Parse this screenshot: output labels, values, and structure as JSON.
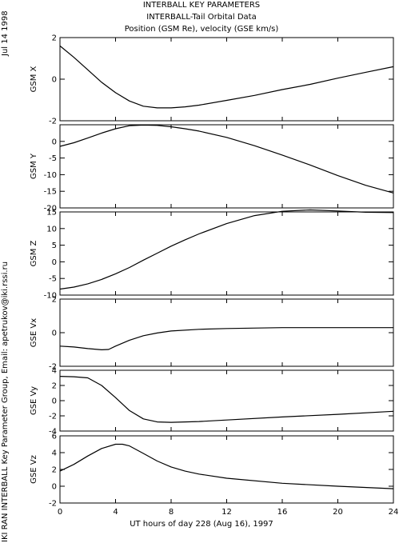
{
  "side_date": "Jul 14 1998",
  "credit": "IKI RAN INTERBALL Key Parameter Group, Email: apetrukov@iki.rssi.ru",
  "chart_data": {
    "type": "line",
    "title": "INTERBALL KEY PARAMETERS",
    "subtitle_1": "INTERBALL-Tail Orbital Data",
    "subtitle_2": "Position (GSM Re), velocity (GSE km/s)",
    "xlabel": "UT hours of day 228 (Aug 16), 1997",
    "x_ticks": [
      0,
      4,
      8,
      12,
      16,
      20,
      24
    ],
    "xlim": [
      0,
      24
    ],
    "grid": false,
    "panels": [
      {
        "ylabel": "GSM X",
        "ylim": [
          -2,
          2
        ],
        "y_ticks": [
          2,
          0,
          -2
        ],
        "x": [
          0,
          1,
          2,
          3,
          4,
          5,
          6,
          7,
          8,
          9,
          10,
          12,
          14,
          16,
          18,
          20,
          22,
          24
        ],
        "values": [
          1.6,
          1.05,
          0.45,
          -0.15,
          -0.65,
          -1.05,
          -1.3,
          -1.38,
          -1.38,
          -1.33,
          -1.25,
          -1.02,
          -0.78,
          -0.5,
          -0.25,
          0.05,
          0.33,
          0.6
        ]
      },
      {
        "ylabel": "GSM Y",
        "ylim": [
          -20,
          5
        ],
        "y_ticks": [
          0,
          -5,
          -10,
          -15,
          -20
        ],
        "x": [
          0,
          1,
          2,
          3,
          4,
          5,
          6,
          7,
          8,
          9,
          10,
          12,
          14,
          16,
          18,
          20,
          22,
          24
        ],
        "values": [
          -1.5,
          -0.4,
          1.0,
          2.5,
          3.8,
          4.7,
          4.9,
          4.8,
          4.4,
          3.8,
          3.1,
          1.2,
          -1.3,
          -4.1,
          -7.1,
          -10.3,
          -13.2,
          -15.5
        ]
      },
      {
        "ylabel": "GSM Z",
        "ylim": [
          -10,
          15
        ],
        "y_ticks": [
          15,
          10,
          5,
          0,
          -5,
          -10
        ],
        "x": [
          0,
          1,
          2,
          3,
          4,
          5,
          6,
          7,
          8,
          9,
          10,
          12,
          14,
          16,
          18,
          20,
          22,
          24
        ],
        "values": [
          -8.2,
          -7.6,
          -6.6,
          -5.3,
          -3.6,
          -1.7,
          0.5,
          2.6,
          4.7,
          6.6,
          8.4,
          11.5,
          13.9,
          15.2,
          15.6,
          15.3,
          14.9,
          14.8
        ]
      },
      {
        "ylabel": "GSE Vx",
        "ylim": [
          -2,
          2
        ],
        "y_ticks": [
          2,
          0,
          -2
        ],
        "x": [
          0,
          1,
          2,
          3,
          3.5,
          4,
          5,
          6,
          7,
          8,
          10,
          12,
          16,
          20,
          24
        ],
        "values": [
          -0.8,
          -0.85,
          -0.95,
          -1.02,
          -1.0,
          -0.8,
          -0.45,
          -0.18,
          -0.02,
          0.1,
          0.2,
          0.25,
          0.3,
          0.3,
          0.3
        ]
      },
      {
        "ylabel": "GSE Vy",
        "ylim": [
          -4,
          4
        ],
        "y_ticks": [
          4,
          2,
          0,
          -2,
          -4
        ],
        "x": [
          0,
          1,
          2,
          3,
          4,
          5,
          6,
          7,
          8,
          9,
          10,
          12,
          16,
          20,
          24
        ],
        "values": [
          3.2,
          3.15,
          3.0,
          2.0,
          0.4,
          -1.3,
          -2.4,
          -2.8,
          -2.85,
          -2.8,
          -2.75,
          -2.55,
          -2.15,
          -1.8,
          -1.4
        ]
      },
      {
        "ylabel": "GSE Vz",
        "ylim": [
          -2,
          6
        ],
        "y_ticks": [
          6,
          4,
          2,
          0,
          -2
        ],
        "x": [
          0,
          1,
          2,
          3,
          4,
          4.5,
          5,
          6,
          7,
          8,
          9,
          10,
          12,
          16,
          20,
          24
        ],
        "values": [
          1.8,
          2.6,
          3.6,
          4.5,
          5.0,
          5.0,
          4.8,
          3.9,
          3.0,
          2.3,
          1.8,
          1.45,
          0.95,
          0.35,
          0.0,
          -0.3
        ]
      }
    ]
  }
}
